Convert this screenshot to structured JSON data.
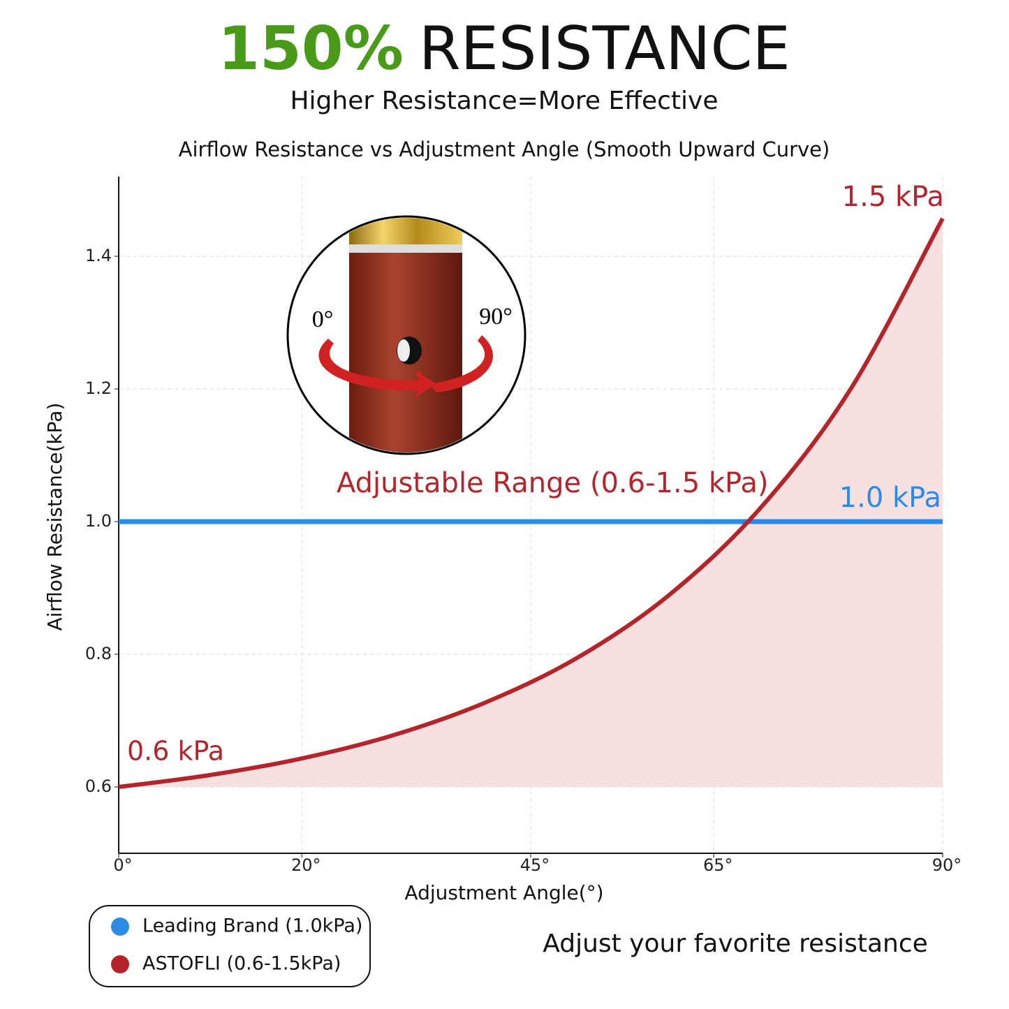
{
  "chart_data": {
    "type": "line",
    "headline": {
      "highlight": "150%",
      "rest": "RESISTANCE"
    },
    "subtitle": "Higher Resistance=More Effective",
    "title": "Airflow Resistance vs Adjustment Angle (Smooth Upward Curve)",
    "xlabel": "Adjustment Angle(°)",
    "ylabel": "Airflow Resistance(kPa)",
    "x": [
      0,
      10,
      20,
      30,
      40,
      50,
      60,
      70,
      80,
      90
    ],
    "series": [
      {
        "name": "Leading Brand (1.0kPa)",
        "color": "#2b8be6",
        "values": [
          1.0,
          1.0,
          1.0,
          1.0,
          1.0,
          1.0,
          1.0,
          1.0,
          1.0,
          1.0
        ]
      },
      {
        "name": "ASTOFLI (0.6-1.5kPa)",
        "color": "#b3252a",
        "fill": "#f6e0e0",
        "fill_base": 0.6,
        "values": [
          0.6,
          0.618,
          0.643,
          0.678,
          0.727,
          0.794,
          0.888,
          1.019,
          1.201,
          1.457
        ]
      }
    ],
    "xlim": [
      0,
      90
    ],
    "xticks": [
      {
        "value": 0,
        "label": "0°"
      },
      {
        "value": 20,
        "label": "20°"
      },
      {
        "value": 45,
        "label": "45°"
      },
      {
        "value": 65,
        "label": "65°"
      },
      {
        "value": 90,
        "label": "90°"
      }
    ],
    "ylim": [
      0.5,
      1.52
    ],
    "yticks": [
      0.6,
      0.8,
      {
        "value": 1,
        "label": "1.0"
      },
      1.2,
      1.4
    ],
    "grid": true,
    "annotations": [
      "1.5 kPa",
      "1.0 kPa",
      "0.6 kPa",
      "Adjustable Range (0.6-1.5 kPa)"
    ],
    "inset_labels": [
      "0°",
      "90°"
    ],
    "footer": "Adjust your favorite resistance"
  }
}
